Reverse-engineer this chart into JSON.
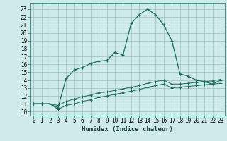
{
  "xlabel": "Humidex (Indice chaleur)",
  "background_color": "#ceeaea",
  "grid_color": "#9dbfbf",
  "line_color": "#1a6b5a",
  "xlim": [
    -0.5,
    23.5
  ],
  "ylim": [
    9.5,
    23.8
  ],
  "x_ticks": [
    0,
    1,
    2,
    3,
    4,
    5,
    6,
    7,
    8,
    9,
    10,
    11,
    12,
    13,
    14,
    15,
    16,
    17,
    18,
    19,
    20,
    21,
    22,
    23
  ],
  "y_ticks": [
    10,
    11,
    12,
    13,
    14,
    15,
    16,
    17,
    18,
    19,
    20,
    21,
    22,
    23
  ],
  "curve1_x": [
    0,
    1,
    2,
    3,
    4,
    5,
    6,
    7,
    8,
    9,
    10,
    11,
    12,
    13,
    14,
    15,
    16,
    17,
    18,
    19,
    20,
    21,
    22,
    23
  ],
  "curve1_y": [
    11,
    11,
    11,
    10.5,
    14.2,
    15.3,
    15.6,
    16.1,
    16.4,
    16.5,
    17.5,
    17.2,
    21.2,
    22.3,
    23.0,
    22.3,
    21.0,
    19.0,
    14.8,
    14.5,
    14.0,
    13.8,
    13.5,
    14.0
  ],
  "curve2_x": [
    0,
    1,
    2,
    3,
    4,
    5,
    6,
    7,
    8,
    9,
    10,
    11,
    12,
    13,
    14,
    15,
    16,
    17,
    18,
    19,
    20,
    21,
    22,
    23
  ],
  "curve2_y": [
    11,
    11,
    11,
    10.8,
    11.3,
    11.6,
    11.9,
    12.1,
    12.4,
    12.5,
    12.7,
    12.9,
    13.1,
    13.3,
    13.6,
    13.8,
    14.0,
    13.5,
    13.5,
    13.6,
    13.7,
    13.8,
    13.9,
    14.1
  ],
  "curve3_x": [
    0,
    1,
    2,
    3,
    4,
    5,
    6,
    7,
    8,
    9,
    10,
    11,
    12,
    13,
    14,
    15,
    16,
    17,
    18,
    19,
    20,
    21,
    22,
    23
  ],
  "curve3_y": [
    11,
    11,
    11,
    10.3,
    10.8,
    11.0,
    11.3,
    11.5,
    11.8,
    12.0,
    12.2,
    12.4,
    12.6,
    12.8,
    13.1,
    13.3,
    13.5,
    13.0,
    13.1,
    13.2,
    13.3,
    13.4,
    13.5,
    13.6
  ]
}
